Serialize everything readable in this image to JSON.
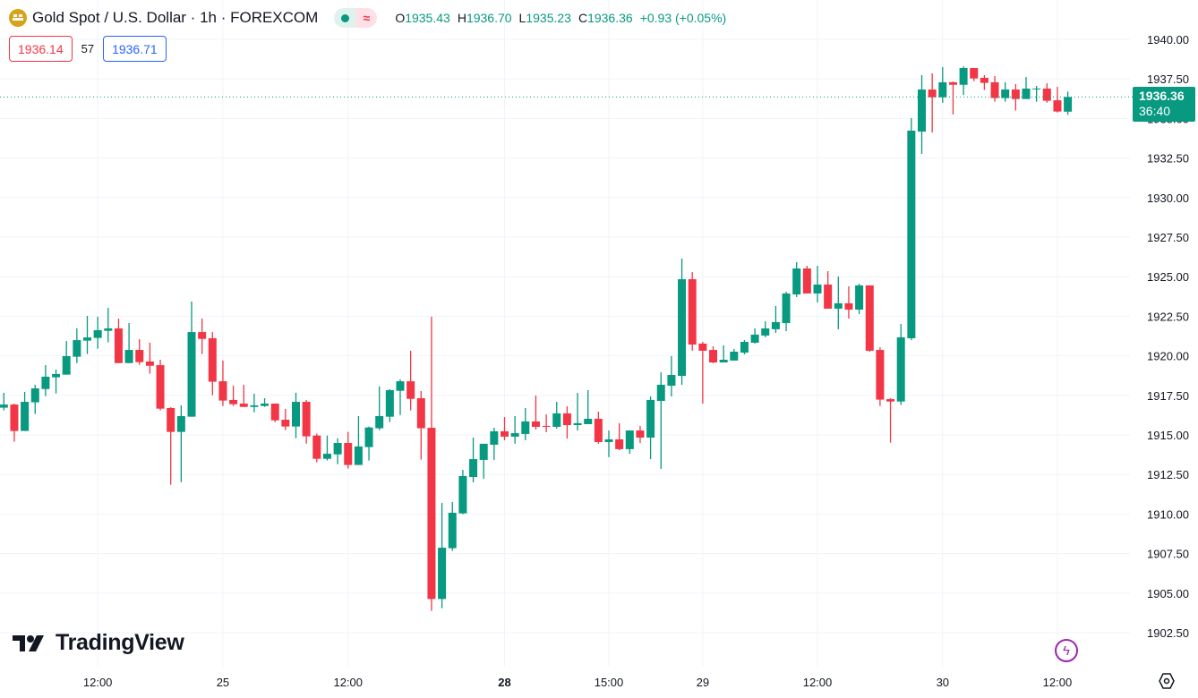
{
  "header": {
    "symbol_title": "Gold Spot / U.S. Dollar · 1h · FOREXCOM",
    "icon": "gold-bars-icon",
    "market_status_icon": "market-open-dot-icon",
    "data_status_icon": "delayed-data-icon",
    "ohlc": {
      "o_label": "O",
      "o_value": "1935.43",
      "h_label": "H",
      "h_value": "1936.70",
      "l_label": "L",
      "l_value": "1935.23",
      "c_label": "C",
      "c_value": "1936.36",
      "change": "+0.93 (+0.05%)"
    }
  },
  "trade": {
    "sell_price": "1936.14",
    "spread": "57",
    "buy_price": "1936.71"
  },
  "last_price": {
    "price": "1936.36",
    "countdown": "36:40"
  },
  "branding": {
    "logo_text": "TradingView"
  },
  "colors": {
    "up": "#089981",
    "down": "#f23645",
    "grid": "#f0f3fa",
    "text": "#131722"
  },
  "chart_data": {
    "type": "candlestick",
    "title": "Gold Spot / U.S. Dollar · 1h · FOREXCOM",
    "ylim": [
      1900.35,
      1942.49
    ],
    "y_ticks": [
      "1940.00",
      "1937.50",
      "1935.00",
      "1932.50",
      "1930.00",
      "1927.50",
      "1925.00",
      "1922.50",
      "1920.00",
      "1917.50",
      "1915.00",
      "1912.50",
      "1910.00",
      "1907.50",
      "1905.00",
      "1902.50"
    ],
    "x_ticks": [
      {
        "label": "12:00",
        "bar": 9,
        "bold": false
      },
      {
        "label": "25",
        "bar": 21,
        "bold": false
      },
      {
        "label": "12:00",
        "bar": 33,
        "bold": false
      },
      {
        "label": "28",
        "bar": 48,
        "bold": true
      },
      {
        "label": "15:00",
        "bar": 58,
        "bold": false
      },
      {
        "label": "29",
        "bar": 67,
        "bold": false
      },
      {
        "label": "12:00",
        "bar": 78,
        "bold": false
      },
      {
        "label": "30",
        "bar": 90,
        "bold": false
      },
      {
        "label": "12:00",
        "bar": 101,
        "bold": false
      }
    ],
    "ohlc_fields": [
      "open",
      "high",
      "low",
      "close"
    ],
    "candles": [
      [
        1916.72,
        1917.66,
        1916.55,
        1916.92
      ],
      [
        1916.92,
        1916.98,
        1914.57,
        1915.25
      ],
      [
        1915.25,
        1917.72,
        1915.25,
        1917.09
      ],
      [
        1917.06,
        1918.17,
        1916.32,
        1917.94
      ],
      [
        1917.9,
        1919.41,
        1917.45,
        1918.68
      ],
      [
        1918.64,
        1919.13,
        1917.62,
        1918.85
      ],
      [
        1918.81,
        1920.94,
        1918.81,
        1919.98
      ],
      [
        1919.94,
        1921.73,
        1919.54,
        1920.99
      ],
      [
        1920.96,
        1922.52,
        1920.11,
        1921.16
      ],
      [
        1921.13,
        1922.47,
        1920.45,
        1921.62
      ],
      [
        1921.58,
        1923.03,
        1920.85,
        1921.73
      ],
      [
        1921.73,
        1922.35,
        1919.54,
        1919.54
      ],
      [
        1919.54,
        1922.07,
        1919.54,
        1920.37
      ],
      [
        1920.37,
        1921.05,
        1919.43,
        1919.6
      ],
      [
        1919.64,
        1920.83,
        1918.87,
        1919.37
      ],
      [
        1919.41,
        1919.75,
        1916.55,
        1916.66
      ],
      [
        1916.7,
        1916.75,
        1911.85,
        1915.19
      ],
      [
        1915.19,
        1916.87,
        1912.02,
        1916.19
      ],
      [
        1916.15,
        1923.43,
        1916.15,
        1921.5
      ],
      [
        1921.5,
        1922.35,
        1920.11,
        1921.07
      ],
      [
        1921.11,
        1921.5,
        1917.51,
        1918.36
      ],
      [
        1918.39,
        1919.7,
        1916.83,
        1917.17
      ],
      [
        1917.21,
        1918.11,
        1916.83,
        1916.94
      ],
      [
        1916.98,
        1918.17,
        1916.77,
        1916.77
      ],
      [
        1916.77,
        1917.6,
        1916.43,
        1916.87
      ],
      [
        1916.83,
        1917.32,
        1916.77,
        1916.98
      ],
      [
        1916.98,
        1916.98,
        1915.81,
        1915.92
      ],
      [
        1915.96,
        1916.64,
        1915.3,
        1915.53
      ],
      [
        1915.53,
        1917.66,
        1914.79,
        1917.09
      ],
      [
        1917.09,
        1917.21,
        1914.45,
        1914.91
      ],
      [
        1914.96,
        1915.08,
        1913.27,
        1913.49
      ],
      [
        1913.49,
        1914.96,
        1913.38,
        1913.81
      ],
      [
        1913.77,
        1914.79,
        1913.15,
        1914.49
      ],
      [
        1914.49,
        1915.19,
        1912.87,
        1913.1
      ],
      [
        1913.1,
        1916.19,
        1913.1,
        1914.27
      ],
      [
        1914.23,
        1915.53,
        1913.38,
        1915.47
      ],
      [
        1915.42,
        1918.07,
        1915.3,
        1916.19
      ],
      [
        1916.15,
        1917.89,
        1915.81,
        1917.83
      ],
      [
        1917.79,
        1918.51,
        1916.26,
        1918.39
      ],
      [
        1918.39,
        1920.32,
        1916.55,
        1917.28
      ],
      [
        1917.32,
        1917.77,
        1913.44,
        1915.42
      ],
      [
        1915.45,
        1922.47,
        1903.88,
        1904.63
      ],
      [
        1904.63,
        1910.7,
        1904.05,
        1907.87
      ],
      [
        1907.84,
        1910.76,
        1907.67,
        1910.08
      ],
      [
        1910.04,
        1912.79,
        1909.99,
        1912.4
      ],
      [
        1912.34,
        1914.83,
        1912.0,
        1913.47
      ],
      [
        1913.42,
        1914.44,
        1912.23,
        1914.44
      ],
      [
        1914.38,
        1915.45,
        1913.42,
        1915.23
      ],
      [
        1915.23,
        1916.13,
        1914.66,
        1914.89
      ],
      [
        1914.89,
        1916.19,
        1914.44,
        1915.11
      ],
      [
        1915.06,
        1916.7,
        1914.66,
        1915.85
      ],
      [
        1915.85,
        1917.49,
        1915.34,
        1915.51
      ],
      [
        1915.57,
        1916.3,
        1915.17,
        1915.51
      ],
      [
        1915.51,
        1917.09,
        1915.4,
        1916.36
      ],
      [
        1916.36,
        1916.81,
        1914.77,
        1915.62
      ],
      [
        1915.62,
        1917.66,
        1915.28,
        1915.74
      ],
      [
        1915.68,
        1917.83,
        1915.68,
        1916.02
      ],
      [
        1916.02,
        1916.47,
        1914.44,
        1914.55
      ],
      [
        1914.55,
        1915.28,
        1913.59,
        1914.72
      ],
      [
        1914.72,
        1915.74,
        1914.04,
        1914.1
      ],
      [
        1914.1,
        1915.28,
        1913.81,
        1915.28
      ],
      [
        1915.28,
        1915.57,
        1914.49,
        1914.83
      ],
      [
        1914.83,
        1917.43,
        1913.47,
        1917.21
      ],
      [
        1917.15,
        1918.96,
        1912.85,
        1918.17
      ],
      [
        1918.11,
        1919.98,
        1917.43,
        1918.79
      ],
      [
        1918.73,
        1926.14,
        1918.17,
        1924.84
      ],
      [
        1924.84,
        1925.29,
        1920.32,
        1920.71
      ],
      [
        1920.77,
        1920.88,
        1916.98,
        1920.32
      ],
      [
        1920.37,
        1920.6,
        1919.53,
        1919.58
      ],
      [
        1919.58,
        1920.66,
        1919.58,
        1919.75
      ],
      [
        1919.7,
        1920.43,
        1919.7,
        1920.26
      ],
      [
        1920.2,
        1920.99,
        1920.09,
        1920.88
      ],
      [
        1920.83,
        1921.73,
        1920.77,
        1921.34
      ],
      [
        1921.28,
        1922.18,
        1921.17,
        1921.73
      ],
      [
        1921.68,
        1923.15,
        1921.45,
        1922.13
      ],
      [
        1922.07,
        1924.05,
        1921.56,
        1923.94
      ],
      [
        1923.88,
        1925.92,
        1923.71,
        1925.52
      ],
      [
        1925.52,
        1925.69,
        1923.94,
        1923.94
      ],
      [
        1923.94,
        1925.69,
        1923.37,
        1924.5
      ],
      [
        1924.5,
        1925.35,
        1922.98,
        1922.98
      ],
      [
        1922.98,
        1925.01,
        1921.68,
        1923.32
      ],
      [
        1923.32,
        1924.39,
        1922.35,
        1922.92
      ],
      [
        1922.92,
        1924.56,
        1922.64,
        1924.45
      ],
      [
        1924.45,
        1924.45,
        1920.26,
        1920.32
      ],
      [
        1920.37,
        1920.54,
        1916.83,
        1917.23
      ],
      [
        1917.26,
        1917.32,
        1914.51,
        1917.11
      ],
      [
        1917.11,
        1922.01,
        1916.89,
        1921.17
      ],
      [
        1921.11,
        1935.02,
        1920.99,
        1934.23
      ],
      [
        1934.17,
        1937.74,
        1932.76,
        1936.83
      ],
      [
        1936.83,
        1937.85,
        1934.12,
        1936.34
      ],
      [
        1936.34,
        1938.25,
        1935.99,
        1937.29
      ],
      [
        1937.29,
        1937.34,
        1935.25,
        1937.13
      ],
      [
        1937.13,
        1938.3,
        1936.49,
        1938.19
      ],
      [
        1938.19,
        1938.19,
        1937.36,
        1937.53
      ],
      [
        1937.57,
        1937.74,
        1936.8,
        1937.25
      ],
      [
        1937.29,
        1937.68,
        1936.06,
        1936.29
      ],
      [
        1936.29,
        1937.29,
        1936.06,
        1936.83
      ],
      [
        1936.83,
        1937.17,
        1935.5,
        1936.23
      ],
      [
        1936.23,
        1937.62,
        1936.23,
        1936.89
      ],
      [
        1936.85,
        1937.06,
        1936.06,
        1936.89
      ],
      [
        1936.89,
        1937.23,
        1936.0,
        1936.12
      ],
      [
        1936.15,
        1937.0,
        1935.38,
        1935.44
      ],
      [
        1935.43,
        1936.7,
        1935.23,
        1936.36
      ]
    ],
    "last_close": 1936.36
  }
}
